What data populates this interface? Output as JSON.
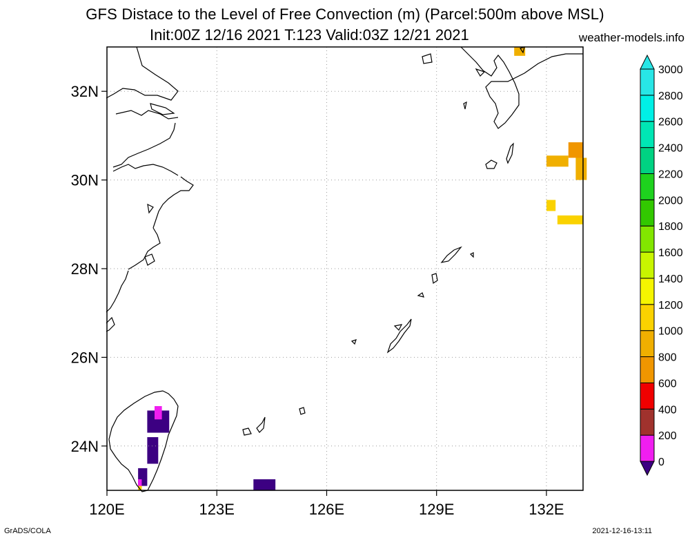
{
  "title": {
    "line1": "GFS Distace to the Level of Free Convection (m) (Parcel:500m above MSL)",
    "line2": "Init:00Z 12/16 2021 T:123 Valid:03Z 12/21 2021"
  },
  "site": "weather-models.info",
  "footer": {
    "left": "GrADS/COLA",
    "right": "2021-12-16-13:11"
  },
  "map": {
    "lon_range": [
      120,
      133
    ],
    "lat_range": [
      23,
      33
    ],
    "x_ticks": [
      {
        "value": 120,
        "label": "120E"
      },
      {
        "value": 123,
        "label": "123E"
      },
      {
        "value": 126,
        "label": "126E"
      },
      {
        "value": 129,
        "label": "129E"
      },
      {
        "value": 132,
        "label": "132E"
      }
    ],
    "y_ticks": [
      {
        "value": 24,
        "label": "24N"
      },
      {
        "value": 26,
        "label": "26N"
      },
      {
        "value": 28,
        "label": "28N"
      },
      {
        "value": 30,
        "label": "30N"
      },
      {
        "value": 32,
        "label": "32N"
      }
    ],
    "grid": true
  },
  "colorbar": {
    "levels": [
      "0",
      "200",
      "400",
      "600",
      "800",
      "1000",
      "1200",
      "1400",
      "1600",
      "1800",
      "2000",
      "2200",
      "2400",
      "2600",
      "2800",
      "3000"
    ],
    "colors": [
      "#3c0082",
      "#f01ef0",
      "#a0322d",
      "#f00000",
      "#f09600",
      "#f0af00",
      "#fad200",
      "#f5f500",
      "#c8f500",
      "#82e600",
      "#32c800",
      "#1ed21e",
      "#00d282",
      "#00e6b4",
      "#00f0e6",
      "#28e6e6"
    ]
  }
}
